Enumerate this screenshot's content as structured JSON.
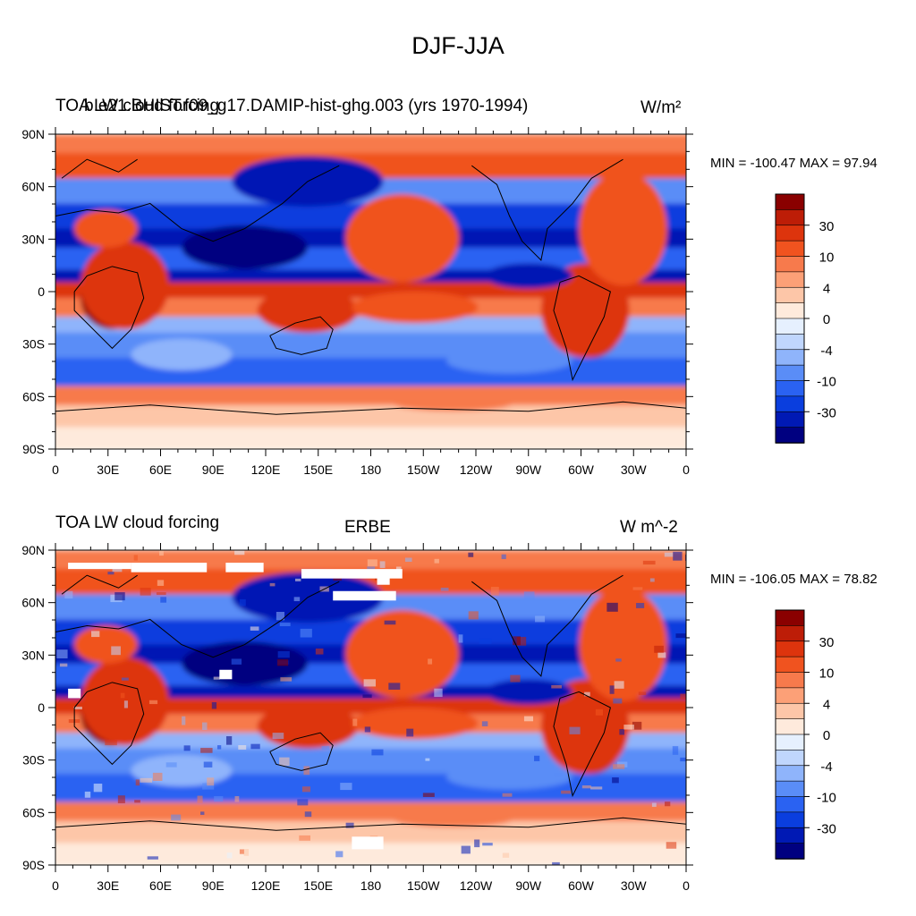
{
  "main_title": "DJF-JJA",
  "palette": [
    "#000080",
    "#0019b4",
    "#0a3ede",
    "#2a62f2",
    "#5a8df7",
    "#8fb4fb",
    "#c0d6fd",
    "#e6f0fe",
    "#feeadc",
    "#fdc6a8",
    "#fca077",
    "#f77a4c",
    "#f0531f",
    "#dd340d",
    "#bd1d07",
    "#8a0000"
  ],
  "colorbar_labels": [
    "30",
    "10",
    "4",
    "0",
    "-4",
    "-10",
    "-30"
  ],
  "x_ticks": [
    "0",
    "30E",
    "60E",
    "90E",
    "120E",
    "150E",
    "180",
    "150W",
    "120W",
    "90W",
    "60W",
    "30W",
    "0"
  ],
  "y_ticks": [
    "90N",
    "60N",
    "30N",
    "0",
    "30S",
    "60S",
    "90S"
  ],
  "panels": [
    {
      "left_title": "TOA LW cloud forcing",
      "center_title": "b.e21.BHIST.f09_g17.DAMIP-hist-ghg.003 (yrs 1970-1994)",
      "units": "W/m²",
      "minmax": "MIN = -100.47 MAX =  97.94"
    },
    {
      "left_title": "TOA LW cloud forcing",
      "center_title": "ERBE",
      "units": "W m^-2",
      "minmax": "MIN = -106.05 MAX =  78.82"
    }
  ],
  "chart_data": [
    {
      "type": "heatmap",
      "title": "DJF-JJA",
      "series_label": "TOA LW cloud forcing",
      "dataset": "b.e21.BHIST.f09_g17.DAMIP-hist-ghg.003 (yrs 1970-1994)",
      "units": "W/m²",
      "min": -100.47,
      "max": 97.94,
      "x_ticks": [
        "0",
        "30E",
        "60E",
        "90E",
        "120E",
        "150E",
        "180",
        "150W",
        "120W",
        "90W",
        "60W",
        "30W",
        "0"
      ],
      "y_ticks": [
        "90N",
        "60N",
        "30N",
        "0",
        "30S",
        "60S",
        "90S"
      ],
      "colorbar_levels": [
        "-30",
        "-10",
        "-4",
        "0",
        "4",
        "10",
        "30"
      ]
    },
    {
      "type": "heatmap",
      "title": "DJF-JJA",
      "series_label": "TOA LW cloud forcing",
      "dataset": "ERBE",
      "units": "W m^-2",
      "min": -106.05,
      "max": 78.82,
      "x_ticks": [
        "0",
        "30E",
        "60E",
        "90E",
        "120E",
        "150E",
        "180",
        "150W",
        "120W",
        "90W",
        "60W",
        "30W",
        "0"
      ],
      "y_ticks": [
        "90N",
        "60N",
        "30N",
        "0",
        "30S",
        "60S",
        "90S"
      ],
      "colorbar_levels": [
        "-30",
        "-10",
        "-4",
        "0",
        "4",
        "10",
        "30"
      ]
    }
  ]
}
